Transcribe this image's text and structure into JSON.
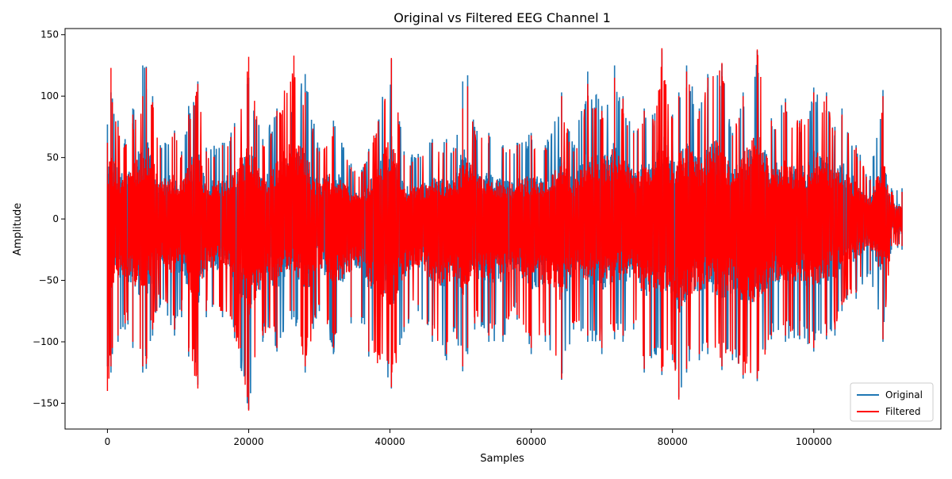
{
  "chart_data": {
    "type": "line",
    "title": "Original vs Filtered EEG Channel 1",
    "xlabel": "Samples",
    "ylabel": "Amplitude",
    "xlim": [
      -6000,
      118000
    ],
    "ylim": [
      -171,
      155
    ],
    "x_ticks": [
      0,
      20000,
      40000,
      60000,
      80000,
      100000
    ],
    "x_tick_labels": [
      "0",
      "20000",
      "40000",
      "60000",
      "80000",
      "100000"
    ],
    "y_ticks": [
      -150,
      -100,
      -50,
      0,
      50,
      100,
      150
    ],
    "y_tick_labels": [
      "−150",
      "−100",
      "−50",
      "0",
      "50",
      "100",
      "150"
    ],
    "grid": false,
    "legend_position": "lower-right",
    "x_range": [
      0,
      112500
    ],
    "series": [
      {
        "name": "Original",
        "color": "#1f77b4",
        "envelope": {
          "x": [
            0,
            500,
            700,
            1500,
            2500,
            3600,
            5000,
            5500,
            6400,
            7500,
            9500,
            10500,
            11500,
            12800,
            14000,
            16300,
            18000,
            19800,
            20000,
            22000,
            24000,
            26400,
            28000,
            30000,
            32000,
            34500,
            36000,
            37000,
            40200,
            42000,
            44000,
            46000,
            48000,
            49000,
            50300,
            51000,
            52000,
            54000,
            56000,
            58000,
            60000,
            62000,
            64300,
            66000,
            68000,
            70000,
            71800,
            73000,
            74500,
            76000,
            77500,
            78500,
            80000,
            80900,
            82000,
            83800,
            85000,
            87000,
            88500,
            90000,
            92000,
            94000,
            96000,
            98000,
            100000,
            101800,
            103000,
            104000,
            106000,
            108000,
            109800,
            111000,
            112500
          ],
          "upper": [
            77,
            103,
            98,
            80,
            65,
            90,
            125,
            124,
            100,
            60,
            72,
            55,
            92,
            112,
            58,
            62,
            78,
            110,
            115,
            65,
            90,
            98,
            118,
            58,
            80,
            45,
            40,
            57,
            130,
            55,
            53,
            65,
            65,
            58,
            112,
            117,
            75,
            70,
            60,
            62,
            70,
            60,
            103,
            58,
            120,
            92,
            125,
            100,
            72,
            90,
            86,
            138,
            85,
            103,
            125,
            90,
            118,
            126,
            70,
            103,
            137,
            82,
            98,
            80,
            107,
            103,
            75,
            90,
            60,
            35,
            105,
            25,
            25
          ],
          "lower": [
            -120,
            -125,
            -110,
            -100,
            -90,
            -105,
            -125,
            -122,
            -95,
            -70,
            -95,
            -80,
            -112,
            -135,
            -80,
            -80,
            -97,
            -150,
            -155,
            -100,
            -108,
            -80,
            -125,
            -75,
            -110,
            -85,
            -85,
            -112,
            -138,
            -92,
            -75,
            -100,
            -115,
            -92,
            -124,
            -110,
            -90,
            -100,
            -100,
            -82,
            -110,
            -100,
            -131,
            -90,
            -100,
            -110,
            -98,
            -100,
            -90,
            -125,
            -110,
            -127,
            -115,
            -145,
            -125,
            -115,
            -110,
            -123,
            -115,
            -130,
            -132,
            -98,
            -100,
            -98,
            -108,
            -98,
            -95,
            -75,
            -65,
            -45,
            -100,
            -25,
            -25
          ]
        }
      },
      {
        "name": "Filtered",
        "color": "#ff0000",
        "envelope": {
          "x": [
            0,
            500,
            700,
            1500,
            2500,
            3600,
            5000,
            5500,
            6400,
            7500,
            9500,
            10500,
            11500,
            12800,
            14000,
            16300,
            18000,
            19800,
            20000,
            22000,
            24000,
            26400,
            28000,
            30000,
            32000,
            34500,
            36000,
            37000,
            40200,
            42000,
            44000,
            46000,
            48000,
            49000,
            50300,
            51000,
            52000,
            54000,
            56000,
            58000,
            60000,
            62000,
            64300,
            66000,
            68000,
            70000,
            71800,
            73000,
            74500,
            76000,
            77500,
            78500,
            80000,
            80900,
            82000,
            83800,
            85000,
            87000,
            88500,
            90000,
            92000,
            94000,
            96000,
            98000,
            100000,
            101800,
            103000,
            104000,
            106000,
            108000,
            109800,
            111000,
            112500
          ],
          "upper": [
            62,
            123,
            95,
            75,
            60,
            85,
            100,
            123,
            95,
            58,
            70,
            52,
            85,
            110,
            55,
            60,
            75,
            120,
            132,
            60,
            88,
            133,
            103,
            55,
            75,
            42,
            38,
            55,
            131,
            52,
            50,
            62,
            62,
            55,
            90,
            108,
            72,
            68,
            58,
            60,
            68,
            58,
            100,
            55,
            110,
            88,
            115,
            98,
            70,
            88,
            80,
            139,
            82,
            100,
            120,
            88,
            115,
            127,
            68,
            100,
            138,
            80,
            95,
            78,
            103,
            100,
            72,
            85,
            58,
            32,
            100,
            22,
            22
          ],
          "lower": [
            -140,
            -120,
            -105,
            -95,
            -85,
            -100,
            -120,
            -118,
            -90,
            -65,
            -90,
            -75,
            -108,
            -138,
            -75,
            -75,
            -92,
            -145,
            -156,
            -95,
            -105,
            -75,
            -120,
            -70,
            -105,
            -80,
            -80,
            -108,
            -137,
            -88,
            -70,
            -95,
            -110,
            -88,
            -120,
            -105,
            -85,
            -95,
            -95,
            -78,
            -105,
            -95,
            -130,
            -85,
            -95,
            -105,
            -92,
            -95,
            -85,
            -122,
            -105,
            -124,
            -110,
            -147,
            -122,
            -110,
            -105,
            -120,
            -110,
            -127,
            -130,
            -95,
            -95,
            -95,
            -105,
            -95,
            -90,
            -70,
            -60,
            -42,
            -98,
            -22,
            -22
          ]
        }
      }
    ]
  }
}
